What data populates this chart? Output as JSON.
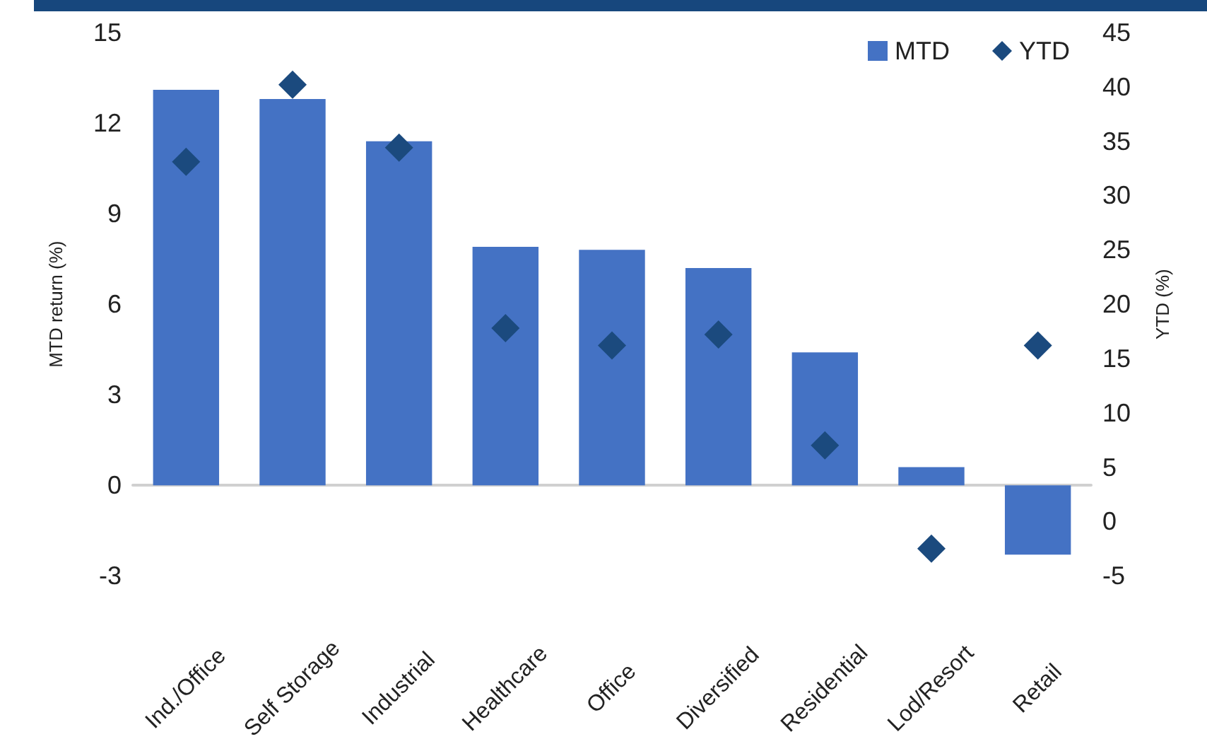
{
  "chart_data": {
    "type": "bar",
    "ylabel": "MTD return (%)",
    "y2label": "YTD (%)",
    "categories": [
      "Ind./Office",
      "Self Storage",
      "Industrial",
      "Healthcare",
      "Office",
      "Diversified",
      "Residential",
      "Lod/Resort",
      "Retail"
    ],
    "series": [
      {
        "name": "MTD",
        "color": "#4472c4",
        "values": [
          13.1,
          12.8,
          11.4,
          7.9,
          7.8,
          7.2,
          4.4,
          0.6,
          -2.3
        ]
      },
      {
        "name": "YTD",
        "type": "scatter",
        "axis": "y2",
        "marker": "diamond",
        "color": "#1b4a7e",
        "values": [
          33.1,
          40.2,
          34.4,
          17.8,
          16.2,
          17.2,
          7.0,
          -2.5,
          16.2
        ]
      }
    ],
    "ylim": [
      -3,
      15
    ],
    "yticks": [
      -3,
      0,
      3,
      6,
      9,
      12,
      15
    ],
    "y2lim": [
      -5,
      45
    ],
    "y2ticks": [
      -5,
      0,
      5,
      10,
      15,
      20,
      25,
      30,
      35,
      40,
      45
    ],
    "legend": "top right"
  }
}
